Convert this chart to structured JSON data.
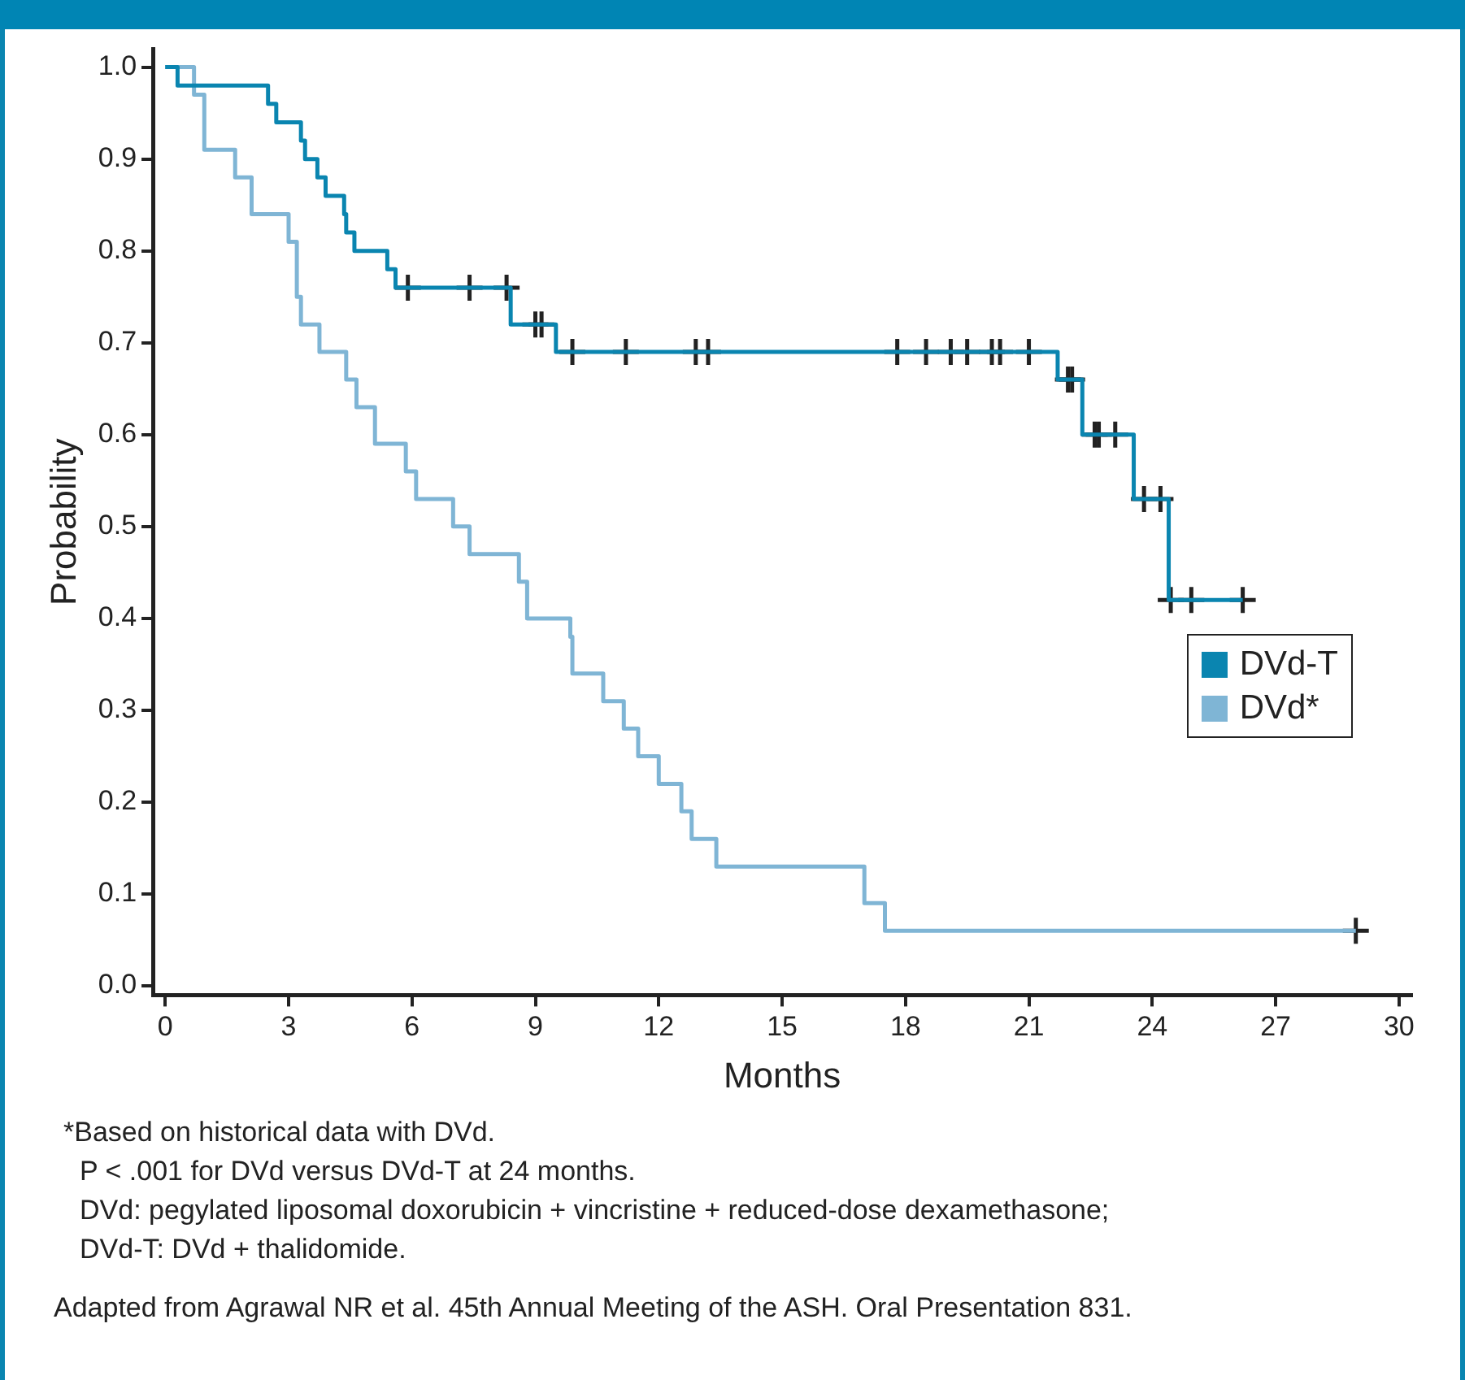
{
  "chart_data": {
    "type": "step",
    "xlabel": "Months",
    "ylabel": "Probability",
    "xlim": [
      -0.3,
      30.3
    ],
    "xticks": [
      0,
      3,
      6,
      9,
      12,
      15,
      18,
      21,
      24,
      27,
      30
    ],
    "ylim": [
      -0.01,
      1.02
    ],
    "yticks": [
      {
        "value": 0,
        "label": "0.0"
      },
      0.1,
      0.2,
      0.3,
      0.4,
      0.5,
      0.6,
      0.7,
      0.8,
      0.9,
      {
        "value": 1,
        "label": "1.0"
      }
    ],
    "grid": false,
    "legend": "right",
    "series": [
      {
        "name": "DVd-T",
        "color": "#0a85b0",
        "x": [
          0,
          0.3,
          2.5,
          2.7,
          3.3,
          3.4,
          3.7,
          3.9,
          4.35,
          4.4,
          4.6,
          5.4,
          5.6,
          8.4,
          9.5,
          21.7,
          22.3,
          23.55,
          24.4,
          26.2
        ],
        "values": [
          1.0,
          0.98,
          0.96,
          0.94,
          0.92,
          0.9,
          0.88,
          0.86,
          0.84,
          0.82,
          0.8,
          0.78,
          0.76,
          0.72,
          0.69,
          0.66,
          0.6,
          0.53,
          0.42,
          0.42
        ]
      },
      {
        "name": "DVd*",
        "color": "#7fb5d5",
        "x": [
          0,
          0.7,
          0.95,
          1.7,
          2.1,
          3.0,
          3.2,
          3.3,
          3.75,
          4.4,
          4.65,
          5.1,
          5.85,
          6.1,
          7.0,
          7.4,
          8.6,
          8.8,
          9.85,
          9.9,
          10.65,
          11.15,
          11.5,
          12.0,
          12.55,
          12.8,
          13.4,
          17.0,
          17.5,
          28.95
        ],
        "values": [
          1.0,
          0.97,
          0.91,
          0.88,
          0.84,
          0.81,
          0.75,
          0.72,
          0.69,
          0.66,
          0.63,
          0.59,
          0.56,
          0.53,
          0.5,
          0.47,
          0.44,
          0.4,
          0.38,
          0.34,
          0.31,
          0.28,
          0.25,
          0.22,
          0.19,
          0.16,
          0.13,
          0.09,
          0.06,
          0.06
        ]
      },
      {
        "type": "scatter",
        "marker": "cross",
        "color": "#222222",
        "x": [
          5.9,
          7.4,
          8.3,
          9.0,
          9.15,
          9.9,
          11.2,
          12.9,
          13.2,
          17.8,
          18.5,
          19.1,
          19.5,
          20.1,
          20.3,
          21.0,
          21.95,
          22.05,
          22.6,
          22.7,
          23.1,
          23.8,
          24.2,
          24.45,
          24.95,
          26.2
        ],
        "values": [
          0.76,
          0.76,
          0.76,
          0.72,
          0.72,
          0.69,
          0.69,
          0.69,
          0.69,
          0.69,
          0.69,
          0.69,
          0.69,
          0.69,
          0.69,
          0.69,
          0.66,
          0.66,
          0.6,
          0.6,
          0.6,
          0.53,
          0.53,
          0.42,
          0.42,
          0.42
        ]
      },
      {
        "type": "scatter",
        "marker": "cross",
        "color": "#222222",
        "x": [
          28.95
        ],
        "values": [
          0.06
        ]
      }
    ],
    "annotations": [
      "*Based on historical data with DVd.",
      "P < .001 for DVd versus DVd-T at 24 months.",
      "DVd: pegylated liposomal doxorubicin + vincristine + reduced-dose dexamethasone;",
      "DVd-T: DVd + thalidomide.",
      "Adapted from Agrawal NR et al. 45th Annual Meeting of the ASH. Oral Presentation 831."
    ]
  }
}
